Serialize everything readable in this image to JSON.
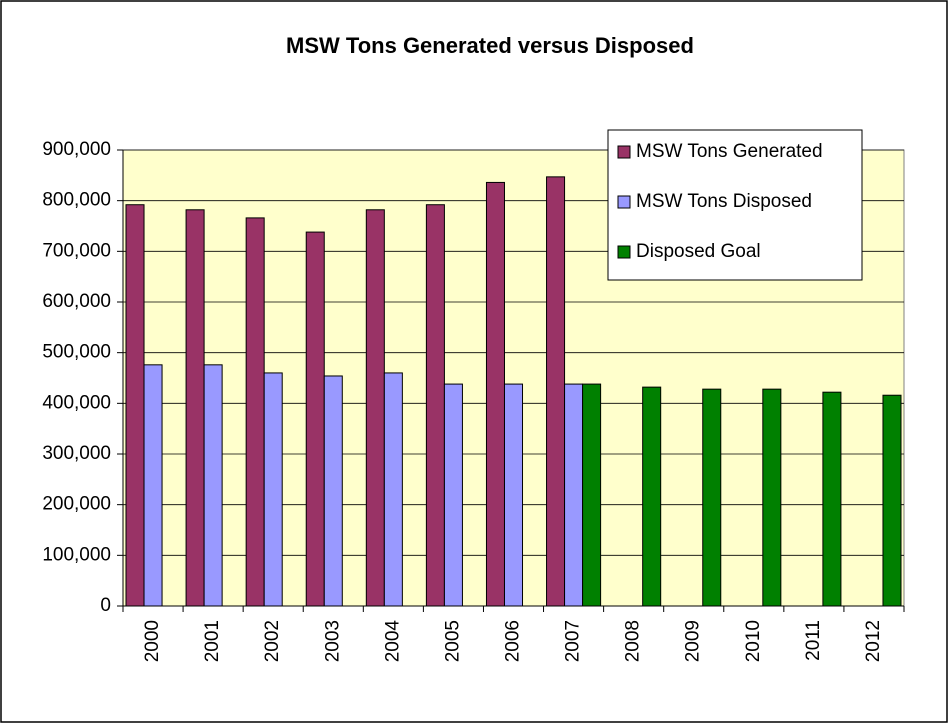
{
  "chart_data": {
    "type": "bar",
    "title": "MSW Tons Generated versus Disposed",
    "categories": [
      "2000",
      "2001",
      "2002",
      "2003",
      "2004",
      "2005",
      "2006",
      "2007",
      "2008",
      "2009",
      "2010",
      "2011",
      "2012"
    ],
    "series": [
      {
        "name": "MSW Tons Generated",
        "color": "#993366",
        "values": [
          792000,
          782000,
          766000,
          738000,
          782000,
          792000,
          836000,
          847000,
          null,
          null,
          null,
          null,
          null
        ]
      },
      {
        "name": "MSW Tons Disposed",
        "color": "#9999ff",
        "values": [
          476000,
          476000,
          460000,
          454000,
          460000,
          438000,
          438000,
          438000,
          null,
          null,
          null,
          null,
          null
        ]
      },
      {
        "name": "Disposed Goal",
        "color": "#008000",
        "values": [
          null,
          null,
          null,
          null,
          null,
          null,
          null,
          438000,
          432000,
          428000,
          428000,
          422000,
          416000
        ]
      }
    ],
    "ylim": [
      0,
      900000
    ],
    "yticks": [
      0,
      {
        "value": 100000,
        "label": "100,000"
      },
      {
        "value": 200000,
        "label": "200,000"
      },
      {
        "value": 300000,
        "label": "300,000"
      },
      {
        "value": 400000,
        "label": "400,000"
      },
      {
        "value": 500000,
        "label": "500,000"
      },
      {
        "value": 600000,
        "label": "600,000"
      },
      {
        "value": 700000,
        "label": "700,000"
      },
      {
        "value": 800000,
        "label": "800,000"
      },
      {
        "value": 900000,
        "label": "900,000"
      }
    ],
    "grid": true,
    "legend": "top-right",
    "plot_background": "#ffffcc"
  }
}
